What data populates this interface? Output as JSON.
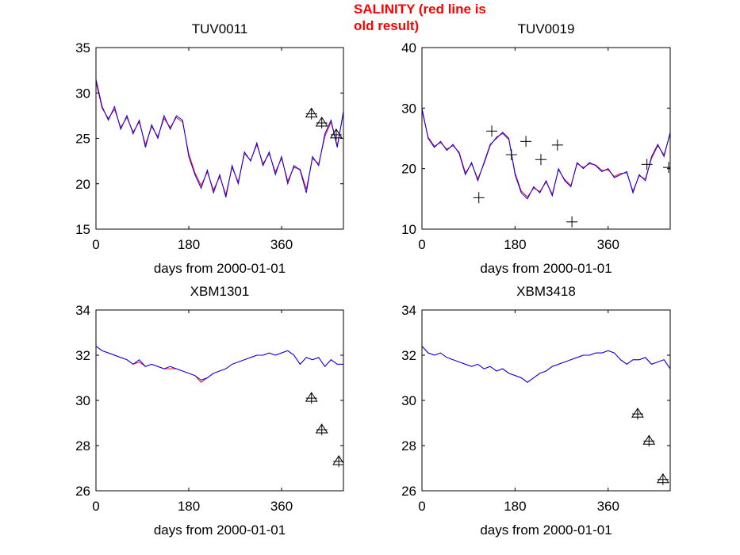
{
  "figure_note": "SALINITY (red line is old result)",
  "colors": {
    "new": "#0000ff",
    "old": "#ff0000",
    "obs": "#000000"
  },
  "chart_data": [
    {
      "type": "line",
      "title": "TUV0011",
      "xlabel": "days from 2000-01-01",
      "xlim": [
        0,
        480
      ],
      "ylim": [
        15,
        35
      ],
      "xticks": [
        0,
        180,
        360
      ],
      "yticks": [
        15,
        20,
        25,
        30,
        35
      ],
      "grid": false,
      "x_step_days": 12,
      "series": [
        {
          "color": "#0000ff",
          "values": [
            31.5,
            28.5,
            27,
            28.5,
            26,
            27.5,
            25.5,
            27,
            24,
            26.5,
            25,
            27.5,
            26,
            27.5,
            27,
            23,
            21,
            19.5,
            21.5,
            19,
            21,
            18.5,
            22,
            20,
            23.5,
            22.5,
            24.5,
            22,
            23.5,
            21,
            23,
            20,
            22,
            21.5,
            19,
            23,
            22,
            25.5,
            27,
            24,
            28
          ]
        },
        {
          "color": "#ff0000",
          "values": [
            31.2,
            28.3,
            27.2,
            28.2,
            26.2,
            27.3,
            25.7,
            26.8,
            24.3,
            26.3,
            25.2,
            27.2,
            26.2,
            27.3,
            26.8,
            23.3,
            21.2,
            19.8,
            21.3,
            19.3,
            20.8,
            18.8,
            21.8,
            20.2,
            23.3,
            22.6,
            24.3,
            22.2,
            23.3,
            21.3,
            22.8,
            20.3,
            21.8,
            21.6,
            19.4,
            22.8,
            22.2,
            25.2,
            26.8,
            24.2,
            27.8
          ]
        }
      ],
      "observations": [
        {
          "x": 418,
          "y": 27.7,
          "marker": "triangle-plus"
        },
        {
          "x": 438,
          "y": 26.7,
          "marker": "triangle-plus"
        },
        {
          "x": 466,
          "y": 25.4,
          "marker": "triangle-plus"
        }
      ]
    },
    {
      "type": "line",
      "title": "TUV0019",
      "xlabel": "days from 2000-01-01",
      "xlim": [
        0,
        480
      ],
      "ylim": [
        10,
        40
      ],
      "xticks": [
        0,
        180,
        360
      ],
      "yticks": [
        10,
        20,
        30,
        40
      ],
      "grid": false,
      "x_step_days": 12,
      "series": [
        {
          "color": "#0000ff",
          "values": [
            30,
            25,
            23.5,
            24.5,
            23,
            24,
            22.5,
            19,
            21,
            18,
            21,
            24,
            25,
            26,
            25,
            19,
            16,
            15,
            17,
            16,
            18,
            15.5,
            20,
            18,
            17,
            21,
            20,
            21,
            20.5,
            19.5,
            20,
            18.5,
            19,
            19.5,
            16,
            19,
            18,
            22,
            24,
            22,
            26
          ]
        },
        {
          "color": "#ff0000",
          "values": [
            29.6,
            25.2,
            23.7,
            24.3,
            23.2,
            23.8,
            22.7,
            19.3,
            20.8,
            18.3,
            20.8,
            23.8,
            25.2,
            25.8,
            24.8,
            19.3,
            16.3,
            15.3,
            16.8,
            16.2,
            17.8,
            15.8,
            19.8,
            18.2,
            17.2,
            20.8,
            20.2,
            20.8,
            20.6,
            19.7,
            19.8,
            18.7,
            19.2,
            19.3,
            16.3,
            18.8,
            18.3,
            21.7,
            23.8,
            22.3,
            25.7
          ]
        }
      ],
      "observations": [
        {
          "x": 110,
          "y": 15.2,
          "marker": "plus"
        },
        {
          "x": 135,
          "y": 26.2,
          "marker": "plus"
        },
        {
          "x": 173,
          "y": 22.3,
          "marker": "plus"
        },
        {
          "x": 201,
          "y": 24.5,
          "marker": "plus"
        },
        {
          "x": 230,
          "y": 21.5,
          "marker": "plus"
        },
        {
          "x": 262,
          "y": 23.9,
          "marker": "plus"
        },
        {
          "x": 290,
          "y": 11.2,
          "marker": "plus"
        },
        {
          "x": 435,
          "y": 20.7,
          "marker": "plus"
        },
        {
          "x": 477,
          "y": 20.2,
          "marker": "plus"
        }
      ]
    },
    {
      "type": "line",
      "title": "XBM1301",
      "xlabel": "days from 2000-01-01",
      "xlim": [
        0,
        480
      ],
      "ylim": [
        26,
        34
      ],
      "xticks": [
        0,
        180,
        360
      ],
      "yticks": [
        26,
        28,
        30,
        32,
        34
      ],
      "grid": false,
      "x_step_days": 12,
      "series": [
        {
          "color": "#0000ff",
          "values": [
            32.4,
            32.2,
            32.1,
            32.0,
            31.9,
            31.8,
            31.6,
            31.8,
            31.5,
            31.6,
            31.5,
            31.4,
            31.5,
            31.4,
            31.3,
            31.2,
            31.1,
            30.9,
            31.0,
            31.2,
            31.3,
            31.4,
            31.6,
            31.7,
            31.8,
            31.9,
            32.0,
            32.0,
            32.1,
            32.0,
            32.1,
            32.2,
            32.0,
            31.6,
            31.9,
            31.8,
            31.9,
            31.5,
            31.8,
            31.6,
            31.6
          ]
        },
        {
          "color": "#ff0000",
          "values": [
            32.4,
            32.2,
            32.1,
            32.0,
            31.9,
            31.8,
            31.6,
            31.7,
            31.5,
            31.6,
            31.5,
            31.4,
            31.4,
            31.4,
            31.3,
            31.2,
            31.1,
            30.8,
            31.0,
            31.2,
            31.3,
            31.4,
            31.6,
            31.7,
            31.8,
            31.9,
            32.0,
            32.0,
            32.1,
            32.0,
            32.1,
            32.2,
            32.0,
            31.6,
            31.9,
            31.8,
            31.9,
            31.5,
            31.8,
            31.6,
            31.6
          ]
        }
      ],
      "observations": [
        {
          "x": 418,
          "y": 30.1,
          "marker": "triangle-plus"
        },
        {
          "x": 438,
          "y": 28.7,
          "marker": "triangle-plus"
        },
        {
          "x": 471,
          "y": 27.3,
          "marker": "triangle-plus"
        }
      ]
    },
    {
      "type": "line",
      "title": "XBM3418",
      "xlabel": "days from 2000-01-01",
      "xlim": [
        0,
        480
      ],
      "ylim": [
        26,
        34
      ],
      "xticks": [
        0,
        180,
        360
      ],
      "yticks": [
        26,
        28,
        30,
        32,
        34
      ],
      "grid": false,
      "x_step_days": 12,
      "series": [
        {
          "color": "#0000ff",
          "values": [
            32.4,
            32.1,
            32.0,
            32.1,
            31.9,
            31.8,
            31.7,
            31.6,
            31.5,
            31.6,
            31.4,
            31.5,
            31.3,
            31.4,
            31.2,
            31.1,
            31.0,
            30.8,
            31.0,
            31.2,
            31.3,
            31.5,
            31.6,
            31.7,
            31.8,
            31.9,
            32.0,
            32.0,
            32.1,
            32.1,
            32.2,
            32.1,
            31.8,
            31.6,
            31.8,
            31.8,
            31.9,
            31.6,
            31.7,
            31.8,
            31.4
          ]
        },
        {
          "color": "#ff0000",
          "values": [
            32.4,
            32.1,
            32.0,
            32.1,
            31.9,
            31.8,
            31.7,
            31.6,
            31.5,
            31.6,
            31.4,
            31.5,
            31.3,
            31.4,
            31.2,
            31.1,
            31.0,
            30.8,
            31.0,
            31.2,
            31.3,
            31.5,
            31.6,
            31.7,
            31.8,
            31.9,
            32.0,
            32.0,
            32.1,
            32.1,
            32.2,
            32.1,
            31.8,
            31.6,
            31.8,
            31.8,
            31.9,
            31.6,
            31.7,
            31.8,
            31.4
          ]
        }
      ],
      "observations": [
        {
          "x": 417,
          "y": 29.4,
          "marker": "triangle-plus"
        },
        {
          "x": 439,
          "y": 28.2,
          "marker": "triangle-plus"
        },
        {
          "x": 466,
          "y": 26.5,
          "marker": "triangle-plus"
        }
      ]
    }
  ]
}
